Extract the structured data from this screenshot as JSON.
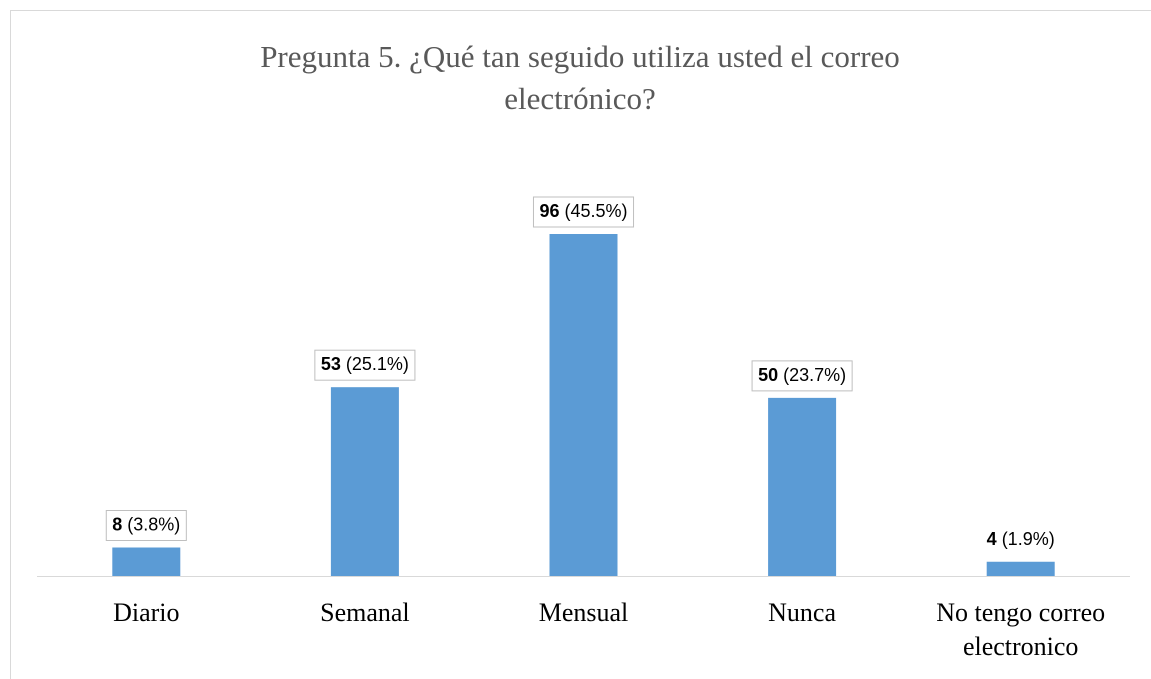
{
  "chart_data": {
    "type": "bar",
    "title": "Pregunta 5. ¿Qué tan seguido utiliza usted el correo electrónico?",
    "categories": [
      "Diario",
      "Semanal",
      "Mensual",
      "Nunca",
      "No tengo correo electronico"
    ],
    "values": [
      8,
      53,
      96,
      50,
      4
    ],
    "value_labels": [
      "8 (3.8%)",
      "53 (25.1%)",
      "96 (45.5%)",
      "50 (23.7%)",
      "4 (1.9%)"
    ],
    "color": "#5b9bd5"
  }
}
